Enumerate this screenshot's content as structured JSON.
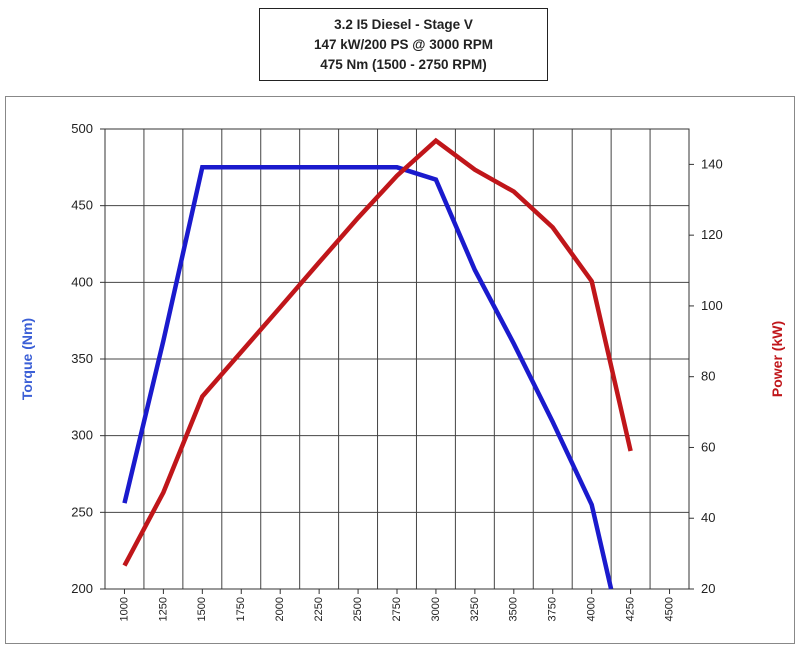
{
  "title_lines": [
    "3.2 I5 Diesel - Stage V",
    "147 kW/200 PS @ 3000 RPM",
    "475 Nm (1500 - 2750 RPM)"
  ],
  "chart_data": {
    "type": "line",
    "x": [
      1000,
      1250,
      1500,
      1750,
      2000,
      2250,
      2500,
      2750,
      3000,
      3250,
      3500,
      3750,
      4000,
      4250,
      4500
    ],
    "xticks": [
      "1000",
      "1250",
      "1500",
      "1750",
      "2000",
      "2250",
      "2500",
      "2750",
      "3000",
      "3250",
      "3500",
      "3750",
      "4000",
      "4250",
      "4500"
    ],
    "xlim": [
      875,
      4625
    ],
    "ylabel_left": "Torque (Nm)",
    "ylabel_right": "Power (kW)",
    "ylim_left": [
      200,
      500
    ],
    "ylim_right": [
      20,
      150
    ],
    "yticks_left": [
      200,
      250,
      300,
      350,
      400,
      450,
      500
    ],
    "yticks_right": [
      20,
      40,
      60,
      80,
      100,
      120,
      140
    ],
    "grid": true,
    "series": [
      {
        "axis": "left",
        "color": "#1a1acd",
        "points": [
          [
            1000,
            256
          ],
          [
            1250,
            362
          ],
          [
            1500,
            475
          ],
          [
            1750,
            475
          ],
          [
            2000,
            475
          ],
          [
            2250,
            475
          ],
          [
            2500,
            475
          ],
          [
            2750,
            475
          ],
          [
            3000,
            467
          ],
          [
            3250,
            408
          ],
          [
            3500,
            360
          ],
          [
            3750,
            309
          ],
          [
            4000,
            255
          ],
          [
            4125,
            200
          ]
        ]
      },
      {
        "axis": "right",
        "color": "#c0161a",
        "points": [
          [
            1000,
            26.6
          ],
          [
            1250,
            47.3
          ],
          [
            1500,
            74.4
          ],
          [
            1750,
            87.0
          ],
          [
            2000,
            99.6
          ],
          [
            2250,
            112.3
          ],
          [
            2500,
            124.9
          ],
          [
            2750,
            136.8
          ],
          [
            3000,
            146.7
          ],
          [
            3250,
            138.5
          ],
          [
            3500,
            132.3
          ],
          [
            3750,
            122.2
          ],
          [
            4000,
            107.0
          ],
          [
            4250,
            59.0
          ]
        ]
      }
    ]
  }
}
